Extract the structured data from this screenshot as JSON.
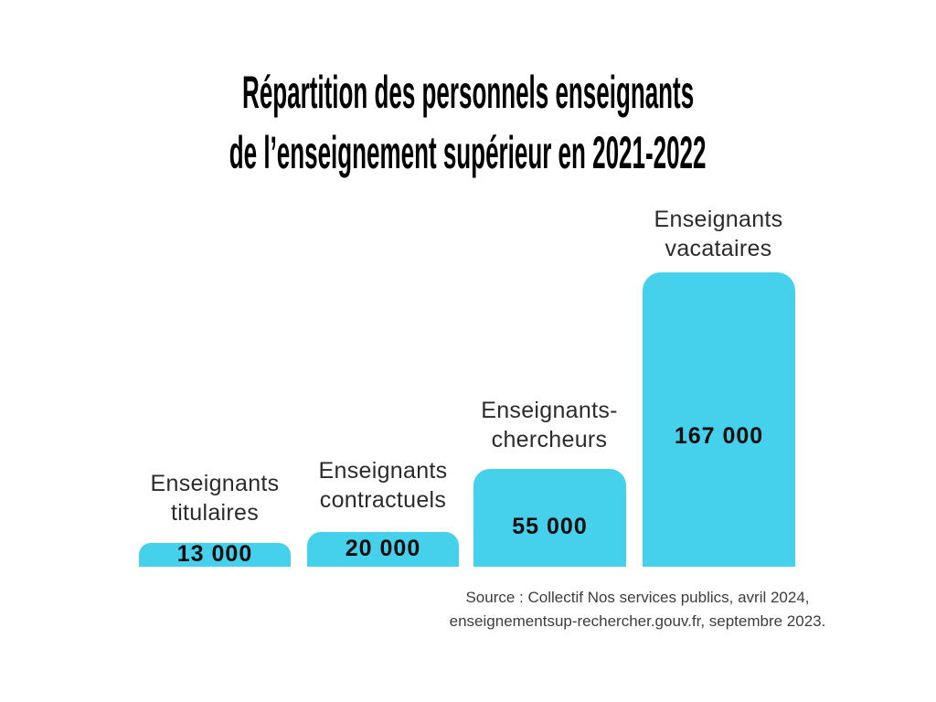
{
  "title": {
    "line1": "Répartition des personnels enseignants",
    "line2": "de l’enseignement supérieur en 2021-2022"
  },
  "chart_data": {
    "type": "bar",
    "title": "Répartition des personnels enseignants de l’enseignement supérieur en 2021-2022",
    "categories": [
      "Enseignants titulaires",
      "Enseignants contractuels",
      "Enseignants-chercheurs",
      "Enseignants vacataires"
    ],
    "values": [
      13000,
      20000,
      55000,
      167000
    ],
    "value_labels": [
      "13 000",
      "20 000",
      "55 000",
      "167 000"
    ],
    "bars": [
      {
        "label_line1": "Enseignants",
        "label_line2": "titulaires",
        "value": 13000,
        "value_label": "13 000"
      },
      {
        "label_line1": "Enseignants",
        "label_line2": "contractuels",
        "value": 20000,
        "value_label": "20 000"
      },
      {
        "label_line1": "Enseignants-",
        "label_line2": "chercheurs",
        "value": 55000,
        "value_label": "55 000"
      },
      {
        "label_line1": "Enseignants",
        "label_line2": "vacataires",
        "value": 167000,
        "value_label": "167 000"
      }
    ],
    "bar_color": "#45D0EC",
    "label_color": "#2b2b2b",
    "value_color": "#0d0d0d",
    "ylim": [
      0,
      167000
    ],
    "grid": false,
    "legend": false,
    "orientation": "vertical"
  },
  "source": {
    "line1": "Source : Collectif Nos services publics, avril 2024,",
    "line2": "enseignementsup-rechercher.gouv.fr, septembre 2023."
  }
}
